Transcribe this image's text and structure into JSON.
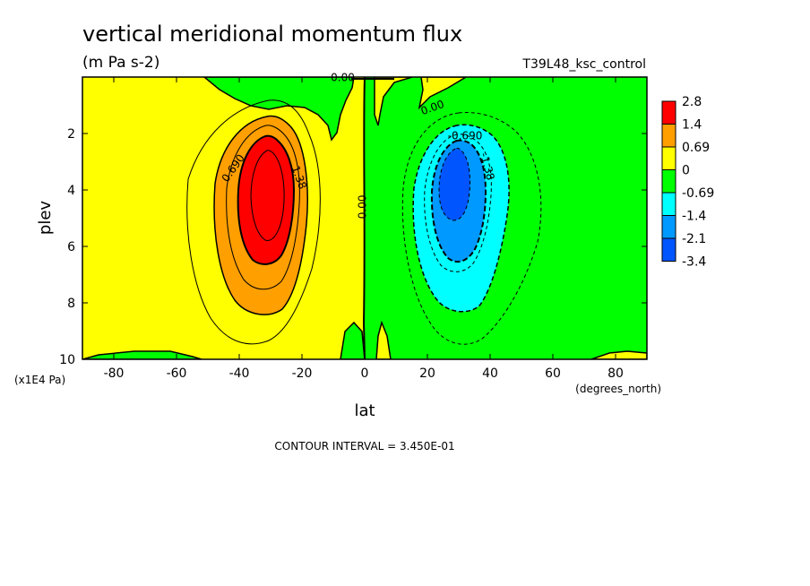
{
  "chart_data": {
    "type": "contour",
    "title": "vertical meridional momentum flux",
    "units": "(m Pa s-2)",
    "experiment": "T39L48_ksc_control",
    "xlabel": "lat",
    "xunits": "(degrees_north)",
    "ylabel": "plev",
    "yunits": "(x1E4 Pa)",
    "xlim": [
      -90,
      90
    ],
    "ylim": [
      10,
      0
    ],
    "xticks": [
      -80,
      -60,
      -40,
      -20,
      0,
      20,
      40,
      60,
      80
    ],
    "yticks": [
      2,
      4,
      6,
      8,
      10
    ],
    "contour_interval_text": "CONTOUR INTERVAL = 3.450E-01",
    "colorbar": {
      "levels": [
        {
          "label": "2.8",
          "color": "#ff0000"
        },
        {
          "label": "1.4",
          "color": "#ff9f00"
        },
        {
          "label": "0.69",
          "color": "#ffff00"
        },
        {
          "label": "0",
          "color": "#00ff00"
        },
        {
          "label": "-0.69",
          "color": "#00ffff"
        },
        {
          "label": "-1.4",
          "color": "#0099ff"
        },
        {
          "label": "-2.1",
          "color": "#0055ff"
        },
        {
          "label": "-3.4",
          "color": ""
        }
      ]
    },
    "contour_labels": [
      {
        "text": "0.690",
        "x": -41,
        "y": 3.3,
        "angle": -55
      },
      {
        "text": "1.38",
        "x": -22,
        "y": 3.6,
        "angle": 70
      },
      {
        "text": "0.00",
        "x": 0.5,
        "y": 4.6,
        "angle": -90
      },
      {
        "text": "0.00",
        "x": -7,
        "y": 0.15,
        "angle": 0
      },
      {
        "text": "0.00",
        "x": 22,
        "y": 1.2,
        "angle": -20
      },
      {
        "text": "-0.690",
        "x": 32,
        "y": 2.2,
        "angle": 0
      },
      {
        "text": "-1.38",
        "x": 38,
        "y": 3.2,
        "angle": 75
      }
    ],
    "features": [
      {
        "name": "positive maximum",
        "lat": -30,
        "plev": 4.0,
        "approx_value": 3.0
      },
      {
        "name": "negative minimum",
        "lat": 29,
        "plev": 4.0,
        "approx_value": -3.0
      }
    ]
  }
}
